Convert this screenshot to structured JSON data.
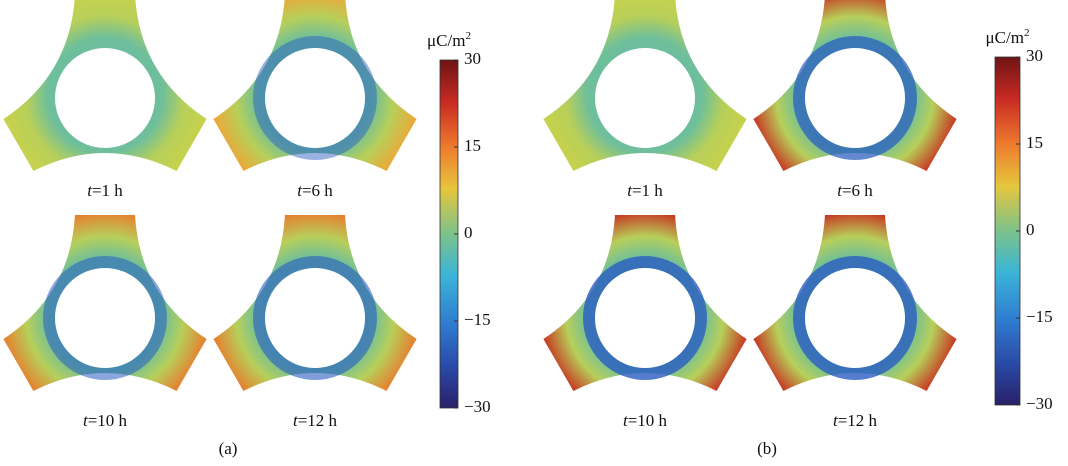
{
  "panels": [
    {
      "label": "(a)",
      "colorbar": {
        "unit": "μC/m",
        "unit_exponent": "2",
        "lim": [
          -30,
          30
        ],
        "ticks": [
          30,
          15,
          0,
          {
            "value": -15,
            "label": "−15"
          },
          {
            "value": -30,
            "label": "−30"
          }
        ]
      },
      "snapshots": [
        {
          "variable": "t",
          "text": "=1 h"
        },
        {
          "variable": "t",
          "text": "=6 h"
        },
        {
          "variable": "t",
          "text": "=10 h"
        },
        {
          "variable": "t",
          "text": "=12 h"
        }
      ]
    },
    {
      "label": "(b)",
      "colorbar": {
        "unit": "μC/m",
        "unit_exponent": "2",
        "lim": [
          -30,
          30
        ],
        "ticks": [
          30,
          15,
          0,
          {
            "value": -15,
            "label": "−15"
          },
          {
            "value": -30,
            "label": "−30"
          }
        ]
      },
      "snapshots": [
        {
          "variable": "t",
          "text": "=1 h"
        },
        {
          "variable": "t",
          "text": "=6 h"
        },
        {
          "variable": "t",
          "text": "=10 h"
        },
        {
          "variable": "t",
          "text": "=12 h"
        }
      ]
    }
  ]
}
